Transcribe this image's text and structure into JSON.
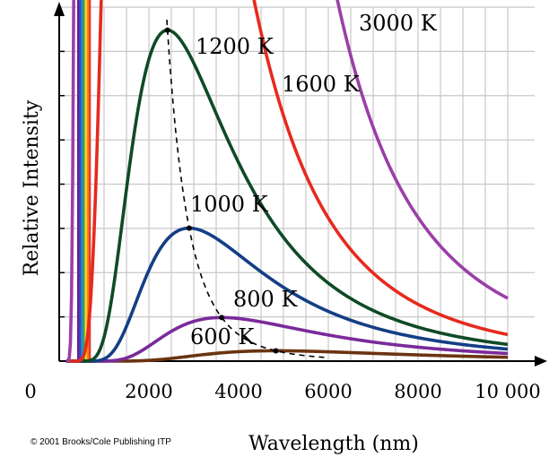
{
  "chart_data": {
    "type": "line",
    "title": "",
    "xlabel": "Wavelength (nm)",
    "ylabel": "Relative Intensity",
    "xlim": [
      0,
      10000
    ],
    "ylim": [
      0,
      8
    ],
    "grid": true,
    "x_ticks": [
      {
        "value": 0,
        "label": "0"
      },
      {
        "value": 2000,
        "label": "2000"
      },
      {
        "value": 4000,
        "label": "4000"
      },
      {
        "value": 6000,
        "label": "6000"
      },
      {
        "value": 8000,
        "label": "8000"
      },
      {
        "value": 10000,
        "label": "10 000"
      }
    ],
    "series": [
      {
        "name": "600 K",
        "temperature": 600,
        "color": "#6b3410"
      },
      {
        "name": "800 K",
        "temperature": 800,
        "color": "#7a2a9a"
      },
      {
        "name": "1000 K",
        "temperature": 1000,
        "color": "#143e86"
      },
      {
        "name": "1200 K",
        "temperature": 1200,
        "color": "#0f4a26"
      },
      {
        "name": "1600 K",
        "temperature": 1600,
        "color": "#e62a1e"
      },
      {
        "name": "3000 K",
        "temperature": 3000,
        "color": "#9b3fa8"
      }
    ],
    "peak_locus": {
      "style": "dashed",
      "color": "#000000"
    },
    "visible_spectrum_band": {
      "x_range": [
        400,
        700
      ],
      "colors": [
        "#6a1b9a",
        "#3949ab",
        "#1e88e5",
        "#43a047",
        "#fdd835",
        "#fb8c00",
        "#e53935"
      ]
    }
  },
  "copyright": "© 2001 Brooks/Cole Publishing ITP"
}
